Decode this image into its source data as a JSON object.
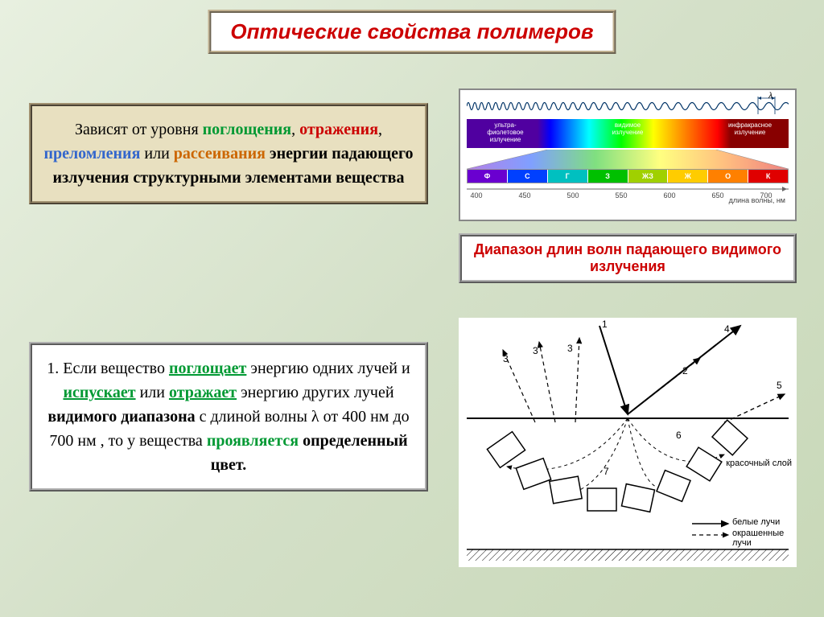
{
  "title": "Оптические свойства полимеров",
  "box1": {
    "pre": "Зависят от уровня ",
    "w1": "поглощения",
    "w2": "отражения",
    "w3": "преломления",
    "or": " или ",
    "w4": "рассеивания",
    "post": " энергии падающего излучения структурными элементами вещества"
  },
  "box2": {
    "pre": "1. Если вещество ",
    "w1": "поглощает",
    "p2": " энергию одних лучей и ",
    "w2": "испускает",
    "p3": " или ",
    "w3": "отражает",
    "p4": " энергию других лучей ",
    "w4": "видимого диапазона",
    "p5": "  с длиной волны ",
    "lambda": "λ",
    "range": "  от 400 нм  до 700 нм ,   то у вещества ",
    "w5": "проявляется",
    "p6": " ",
    "w6": "определенный цвет."
  },
  "box3": "Диапазон длин волн падающего видимого излучения",
  "spectrum": {
    "lambda": "λ",
    "top_labels": {
      "uv": "ультра-\nфиолетовое\nизлучение",
      "vis": "видимое\nизлучение",
      "ir": "инфракрасное\nизлучение"
    },
    "segments": [
      {
        "name": "Ф",
        "color": "#6a00d0"
      },
      {
        "name": "С",
        "color": "#0040ff"
      },
      {
        "name": "Г",
        "color": "#00c0c0"
      },
      {
        "name": "З",
        "color": "#00c000"
      },
      {
        "name": "ЖЗ",
        "color": "#a0d000"
      },
      {
        "name": "Ж",
        "color": "#ffcc00"
      },
      {
        "name": "О",
        "color": "#ff8000"
      },
      {
        "name": "К",
        "color": "#e00000"
      }
    ],
    "ticks": [
      400,
      450,
      500,
      550,
      600,
      650,
      700
    ],
    "axis_label": "длина волны, нм"
  },
  "ray": {
    "rays": [
      "1",
      "2",
      "3",
      "4",
      "5",
      "6",
      "7"
    ],
    "layer_label": "красочный слой",
    "legend_solid": "белые лучи",
    "legend_dashed": "окрашенные лучи"
  }
}
